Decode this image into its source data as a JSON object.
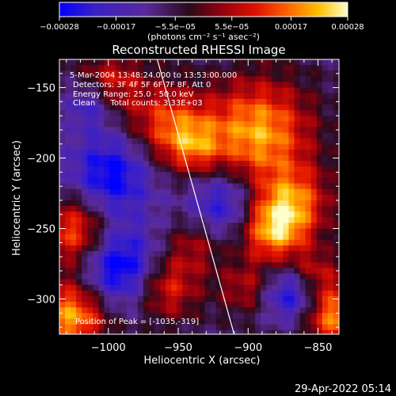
{
  "chart_data": {
    "type": "heatmap",
    "title": "Reconstructed RHESSI Image",
    "xlabel": "Heliocentric X (arcsec)",
    "ylabel": "Heliocentric Y (arcsec)",
    "xlim": [
      -1035,
      -835
    ],
    "ylim": [
      -325,
      -130
    ],
    "xticks": [
      -1000,
      -950,
      -900,
      -850
    ],
    "xtick_labels": [
      "−1000",
      "−950",
      "−900",
      "−850"
    ],
    "yticks": [
      -300,
      -250,
      -200,
      -150
    ],
    "ytick_labels": [
      "−300",
      "−250",
      "−200",
      "−150"
    ],
    "colorbar": {
      "range": [
        -0.00028,
        0.00028
      ],
      "ticks": [
        -0.00028,
        -0.00017,
        -5.5e-05,
        5.5e-05,
        0.00017,
        0.00028
      ],
      "tick_labels": [
        "−0.00028",
        "−0.00017",
        "−5.5e−05",
        "5.5e−05",
        "0.00017",
        "0.00028"
      ],
      "unit_label": "(photons cm⁻² s⁻¹ asec⁻²)",
      "colors": [
        "#0000ff",
        "#3a1fc8",
        "#5a2a9a",
        "#2a0a1a",
        "#8a0010",
        "#e01000",
        "#ff6a00",
        "#ffc000",
        "#ffffcc"
      ]
    },
    "annotations": [
      "5-Mar-2004 13:48:24.000 to 13:53:00.000",
      "Detectors: 3F 4F 5F 6F 7F 8F, Att 0",
      "Energy Range: 25.0 - 50.0 keV",
      "Clean      Total counts: 3.33E+03"
    ],
    "peak_label": "Position of Peak = [-1035,-319]",
    "limb": [
      [
        -965,
        -130
      ],
      [
        -910,
        -325
      ]
    ],
    "regions": [
      {
        "x": -895,
        "y": -180,
        "r": 26,
        "v": 0.00028
      },
      {
        "x": -870,
        "y": -230,
        "r": 18,
        "v": 0.00022
      },
      {
        "x": -885,
        "y": -250,
        "r": 16,
        "v": 0.00025
      },
      {
        "x": -960,
        "y": -175,
        "r": 20,
        "v": 0.0002
      },
      {
        "x": -940,
        "y": -190,
        "r": 14,
        "v": 0.00015
      },
      {
        "x": -1000,
        "y": -145,
        "r": 16,
        "v": 0.00016
      },
      {
        "x": -1025,
        "y": -250,
        "r": 18,
        "v": 0.00024
      },
      {
        "x": -1028,
        "y": -310,
        "r": 18,
        "v": 0.00028
      },
      {
        "x": -960,
        "y": -290,
        "r": 16,
        "v": 0.00018
      },
      {
        "x": -940,
        "y": -260,
        "r": 14,
        "v": 0.00012
      },
      {
        "x": -840,
        "y": -310,
        "r": 16,
        "v": 0.00026
      },
      {
        "x": -855,
        "y": -280,
        "r": 12,
        "v": 0.00014
      },
      {
        "x": -905,
        "y": -290,
        "r": 13,
        "v": 0.00012
      },
      {
        "x": -1000,
        "y": -210,
        "r": 22,
        "v": -0.00022
      },
      {
        "x": -995,
        "y": -275,
        "r": 20,
        "v": -0.00025
      },
      {
        "x": -920,
        "y": -230,
        "r": 18,
        "v": -0.00018
      },
      {
        "x": -870,
        "y": -295,
        "r": 14,
        "v": -0.0002
      },
      {
        "x": -1015,
        "y": -160,
        "r": 12,
        "v": -0.00015
      }
    ]
  },
  "timestamp": "29-Apr-2022 05:14"
}
